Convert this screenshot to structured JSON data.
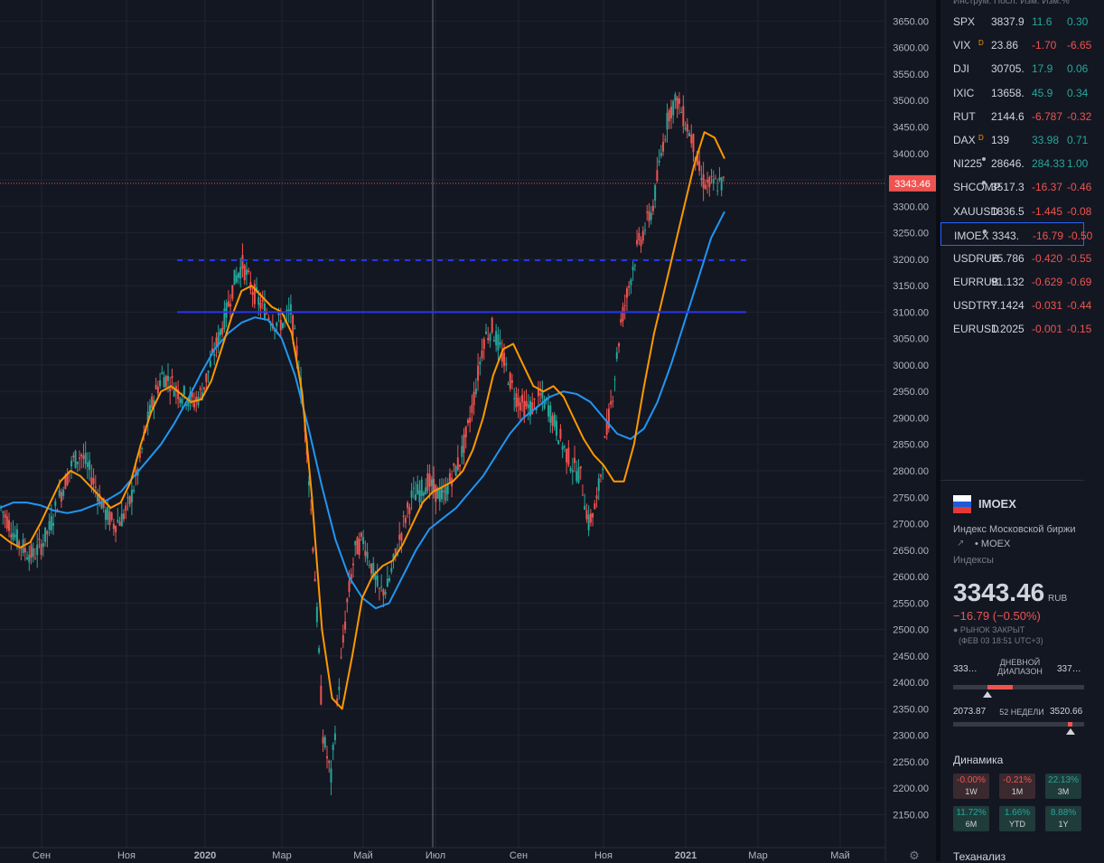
{
  "chart_data": {
    "type": "candlestick",
    "symbol": "IMOEX",
    "ylim": [
      2115,
      3690
    ],
    "y_ticks": [
      "3650.00",
      "3600.00",
      "3550.00",
      "3500.00",
      "3450.00",
      "3400.00",
      "3350.00",
      "3300.00",
      "3250.00",
      "3200.00",
      "3150.00",
      "3100.00",
      "3050.00",
      "3000.00",
      "2950.00",
      "2900.00",
      "2850.00",
      "2800.00",
      "2750.00",
      "2700.00",
      "2650.00",
      "2600.00",
      "2550.00",
      "2500.00",
      "2450.00",
      "2400.00",
      "2350.00",
      "2300.00",
      "2250.00",
      "2200.00",
      "2150.00"
    ],
    "x_ticks": [
      "Сен",
      "Ноя",
      "2020",
      "Мар",
      "Май",
      "Июл",
      "Сен",
      "Ноя",
      "2021",
      "Мар",
      "Май"
    ],
    "last_price_label": "3343.46",
    "last_price": 3343.46,
    "horizontal_levels": [
      {
        "value": 3198,
        "style": "dashed",
        "color": "#2a35e8"
      },
      {
        "value": 3100,
        "style": "solid",
        "color": "#2a35e8"
      }
    ],
    "close_series": [
      2730,
      2700,
      2670,
      2650,
      2640,
      2660,
      2690,
      2740,
      2780,
      2820,
      2830,
      2800,
      2760,
      2720,
      2700,
      2710,
      2740,
      2800,
      2880,
      2940,
      2980,
      2970,
      2950,
      2940,
      2930,
      2950,
      3000,
      3050,
      3100,
      3160,
      3190,
      3150,
      3120,
      3100,
      3080,
      3080,
      3100,
      3000,
      2850,
      2600,
      2300,
      2220,
      2400,
      2550,
      2650,
      2670,
      2620,
      2570,
      2580,
      2640,
      2700,
      2750,
      2760,
      2780,
      2760,
      2750,
      2790,
      2820,
      2880,
      2960,
      3050,
      3070,
      3030,
      2980,
      2940,
      2920,
      2920,
      2940,
      2920,
      2880,
      2840,
      2810,
      2790,
      2700,
      2740,
      2850,
      2950,
      3080,
      3150,
      3220,
      3260,
      3300,
      3400,
      3480,
      3500,
      3460,
      3420,
      3350,
      3340,
      3343
    ],
    "ema_fast": [
      2680,
      2665,
      2655,
      2665,
      2700,
      2740,
      2780,
      2800,
      2790,
      2770,
      2750,
      2730,
      2740,
      2780,
      2850,
      2910,
      2950,
      2960,
      2945,
      2930,
      2935,
      2970,
      3030,
      3090,
      3140,
      3150,
      3130,
      3110,
      3100,
      3060,
      2950,
      2750,
      2500,
      2370,
      2350,
      2450,
      2560,
      2600,
      2620,
      2630,
      2660,
      2700,
      2740,
      2760,
      2770,
      2780,
      2800,
      2840,
      2900,
      2980,
      3030,
      3040,
      3000,
      2960,
      2950,
      2960,
      2940,
      2900,
      2860,
      2830,
      2810,
      2780,
      2780,
      2850,
      2960,
      3060,
      3140,
      3220,
      3300,
      3380,
      3440,
      3430,
      3390
    ],
    "ema_slow": [
      2730,
      2740,
      2740,
      2735,
      2725,
      2720,
      2725,
      2735,
      2745,
      2760,
      2790,
      2820,
      2850,
      2890,
      2935,
      2985,
      3030,
      3060,
      3080,
      3090,
      3085,
      3050,
      2980,
      2880,
      2770,
      2670,
      2600,
      2560,
      2540,
      2550,
      2600,
      2650,
      2690,
      2710,
      2730,
      2760,
      2790,
      2830,
      2870,
      2900,
      2920,
      2940,
      2950,
      2945,
      2930,
      2900,
      2870,
      2860,
      2880,
      2930,
      3000,
      3080,
      3160,
      3240,
      3290
    ]
  },
  "price_axis": {
    "current_label": "3343.46"
  },
  "watchlist": {
    "header": "Инструм. Посл. Изм. Изм.%",
    "rows": [
      {
        "symbol": "SPX",
        "last": "3837.9",
        "change": "11.6",
        "change_pct": "0.30",
        "dir": "up"
      },
      {
        "symbol": "VIX",
        "last": "23.86",
        "change": "-1.70",
        "change_pct": "-6.65",
        "dir": "down",
        "flag": "D"
      },
      {
        "symbol": "DJI",
        "last": "30705.",
        "change": "17.9",
        "change_pct": "0.06",
        "dir": "up"
      },
      {
        "symbol": "IXIC",
        "last": "13658.",
        "change": "45.9",
        "change_pct": "0.34",
        "dir": "up"
      },
      {
        "symbol": "RUT",
        "last": "2144.6",
        "change": "-6.787",
        "change_pct": "-0.32",
        "dir": "down"
      },
      {
        "symbol": "DAX",
        "last": "139",
        "change": "33.98",
        "change_pct": "0.71",
        "dir": "up",
        "flag": "D"
      },
      {
        "symbol": "NI225",
        "last": "28646.",
        "change": "284.33",
        "change_pct": "1.00",
        "dir": "up",
        "dot": true
      },
      {
        "symbol": "SHCOMP",
        "last": "3517.3",
        "change": "-16.37",
        "change_pct": "-0.46",
        "dir": "down",
        "dot": true
      },
      {
        "symbol": "XAUUSD",
        "last": "1836.5",
        "change": "-1.445",
        "change_pct": "-0.08",
        "dir": "down"
      },
      {
        "symbol": "IMOEX",
        "last": "3343.",
        "change": "-16.79",
        "change_pct": "-0.50",
        "dir": "down",
        "dot": true,
        "selected": true
      },
      {
        "symbol": "USDRUB",
        "last": "75.786",
        "change": "-0.420",
        "change_pct": "-0.55",
        "dir": "down"
      },
      {
        "symbol": "EURRUB",
        "last": "91.132",
        "change": "-0.629",
        "change_pct": "-0.69",
        "dir": "down"
      },
      {
        "symbol": "USDTRY",
        "last": "7.1424",
        "change": "-0.031",
        "change_pct": "-0.44",
        "dir": "down"
      },
      {
        "symbol": "EURUSD",
        "last": "1.2025",
        "change": "-0.001",
        "change_pct": "-0.15",
        "dir": "down"
      }
    ]
  },
  "details": {
    "symbol": "IMOEX",
    "name": "Индекс Московской биржи",
    "link_icon": "external-link-icon",
    "exchange": "• MOEX",
    "type": "Индексы",
    "price": "3343.46",
    "currency": "RUB",
    "change": "−16.79 (−0.50%)",
    "status": "● РЫНОК ЗАКРЫТ",
    "status_time": "(ФЕВ 03 18:51 UTC+3)",
    "day_range": {
      "low": "333…",
      "label": "ДНЕВНОЙ ДИАПАЗОН",
      "high": "337…"
    },
    "week52": {
      "low": "2073.87",
      "label": "52 НЕДЕЛИ",
      "high": "3520.66"
    },
    "perf_title": "Динамика",
    "perf": [
      {
        "value": "-0.00%",
        "period": "1W",
        "dir": "down"
      },
      {
        "value": "-0.21%",
        "period": "1M",
        "dir": "down"
      },
      {
        "value": "22.13%",
        "period": "3M",
        "dir": "up"
      },
      {
        "value": "11.72%",
        "period": "6M",
        "dir": "up"
      },
      {
        "value": "1.66%",
        "period": "YTD",
        "dir": "up"
      },
      {
        "value": "8.88%",
        "period": "1Y",
        "dir": "up"
      }
    ],
    "tech_title": "Теханализ"
  }
}
